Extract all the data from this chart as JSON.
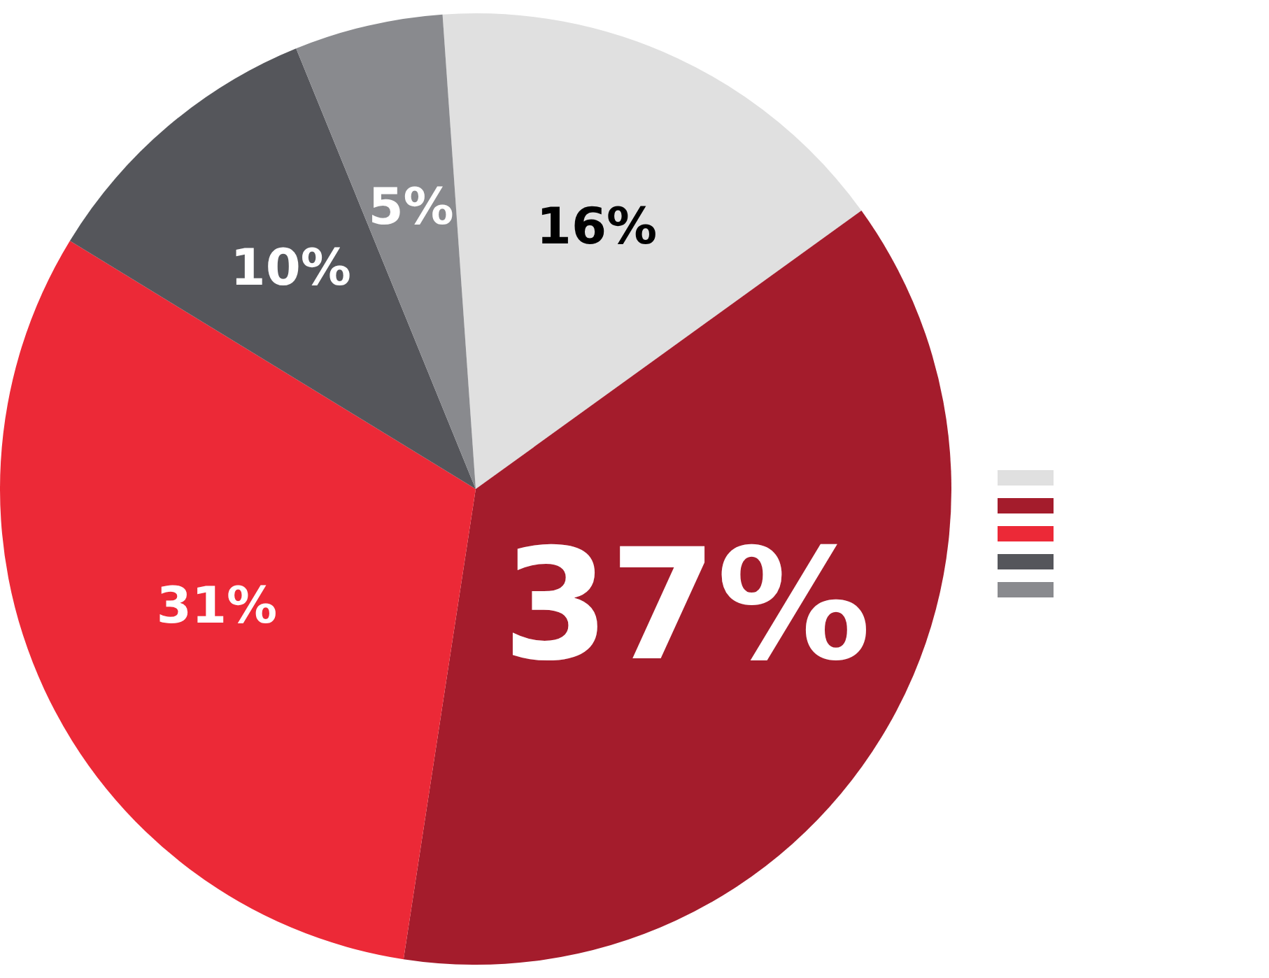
{
  "chart_data": {
    "type": "pie",
    "categories": [
      null,
      null,
      null,
      null,
      null
    ],
    "values": [
      16,
      37,
      31,
      10,
      5
    ],
    "colors": [
      "#e0e0e0",
      "#a41c2c",
      "#ec2937",
      "#55565b",
      "#898a8e"
    ],
    "value_labels": [
      "16%",
      "37%",
      "31%",
      "10%",
      "5%"
    ]
  }
}
